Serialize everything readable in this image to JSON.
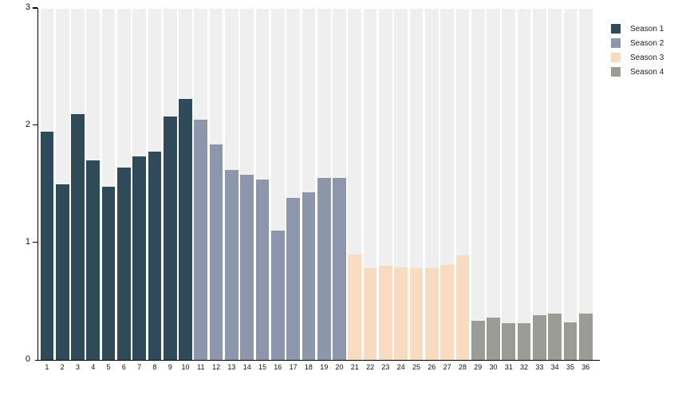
{
  "chart_data": {
    "type": "bar",
    "title": "",
    "xlabel": "",
    "ylabel": "",
    "ylim": [
      0,
      3
    ],
    "yticks": [
      0,
      1,
      2,
      3
    ],
    "grid": false,
    "legend_position": "top-right",
    "colors": {
      "plot_band": "#efefef",
      "axis": "#000000",
      "tick_label": "#111111",
      "background": "#ffffff"
    },
    "categories": [
      "1",
      "2",
      "3",
      "4",
      "5",
      "6",
      "7",
      "8",
      "9",
      "10",
      "11",
      "12",
      "13",
      "14",
      "15",
      "16",
      "17",
      "18",
      "19",
      "20",
      "21",
      "22",
      "23",
      "24",
      "25",
      "26",
      "27",
      "28",
      "29",
      "30",
      "31",
      "32",
      "33",
      "34",
      "35",
      "36"
    ],
    "series": [
      {
        "name": "Season 1",
        "color": "#2f4b59",
        "x": [
          "1",
          "2",
          "3",
          "4",
          "5",
          "6",
          "7",
          "8",
          "9",
          "10"
        ],
        "values": [
          1.95,
          1.5,
          2.1,
          1.7,
          1.48,
          1.64,
          1.74,
          1.78,
          2.08,
          2.23
        ]
      },
      {
        "name": "Season 2",
        "color": "#8d97ac",
        "x": [
          "11",
          "12",
          "13",
          "14",
          "15",
          "16",
          "17",
          "18",
          "19",
          "20"
        ],
        "values": [
          2.05,
          1.84,
          1.62,
          1.58,
          1.54,
          1.1,
          1.38,
          1.43,
          1.55,
          1.55
        ]
      },
      {
        "name": "Season 3",
        "color": "#f9dbc0",
        "x": [
          "21",
          "22",
          "23",
          "24",
          "25",
          "26",
          "27",
          "28"
        ],
        "values": [
          0.9,
          0.78,
          0.8,
          0.79,
          0.78,
          0.78,
          0.81,
          0.89
        ]
      },
      {
        "name": "Season 4",
        "color": "#9c9c96",
        "x": [
          "29",
          "30",
          "31",
          "32",
          "33",
          "34",
          "35",
          "36"
        ],
        "values": [
          0.33,
          0.36,
          0.31,
          0.31,
          0.38,
          0.39,
          0.32,
          0.39
        ]
      }
    ],
    "legend": [
      "Season 1",
      "Season 2",
      "Season 3",
      "Season 4"
    ]
  }
}
